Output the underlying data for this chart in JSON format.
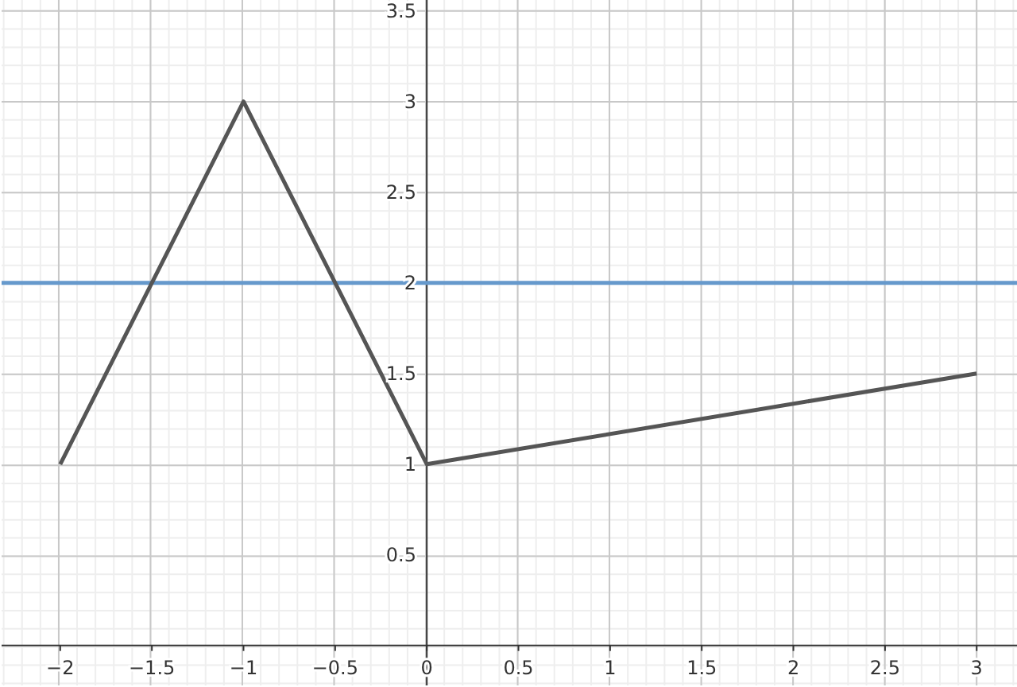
{
  "chart_data": {
    "type": "line",
    "xlim": [
      -2.32,
      3.22
    ],
    "ylim": [
      -0.22,
      3.56
    ],
    "xticks": [
      -2,
      -1.5,
      -1,
      -0.5,
      0,
      0.5,
      1,
      1.5,
      2,
      2.5,
      3
    ],
    "yticks": [
      0.5,
      1,
      1.5,
      2,
      2.5,
      3,
      3.5
    ],
    "grid": true,
    "marker": "none",
    "line_style": "solid",
    "series": [
      {
        "color": "#555555",
        "x": [
          -2,
          -1,
          0,
          3
        ],
        "values": [
          1,
          3,
          1,
          1.5
        ]
      }
    ],
    "ref_lines": [
      {
        "axis": "y",
        "value": 2,
        "color": "#6699cc",
        "line_style": "solid"
      }
    ]
  }
}
